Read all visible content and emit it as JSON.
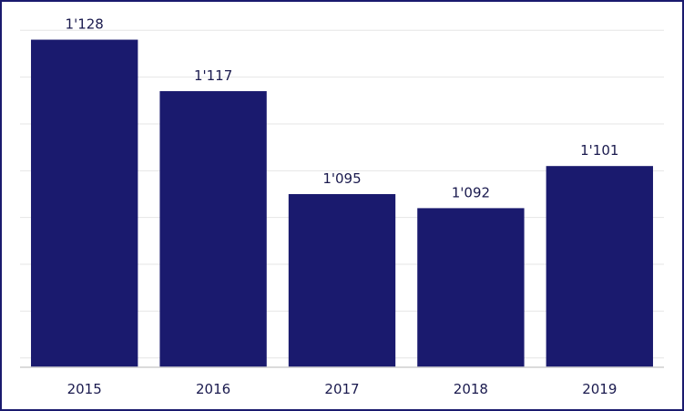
{
  "chart_data": {
    "type": "bar",
    "categories": [
      "2015",
      "2016",
      "2017",
      "2018",
      "2019"
    ],
    "values": [
      1128,
      1117,
      1095,
      1092,
      1101
    ],
    "value_labels": [
      "1'128",
      "1'117",
      "1'095",
      "1'092",
      "1'101"
    ],
    "title": "",
    "xlabel": "",
    "ylabel": "",
    "ylim": [
      1058,
      1132
    ],
    "y_tick_step": 10,
    "grid": true,
    "legend": "none",
    "bar_color": "#1a1a6e"
  }
}
